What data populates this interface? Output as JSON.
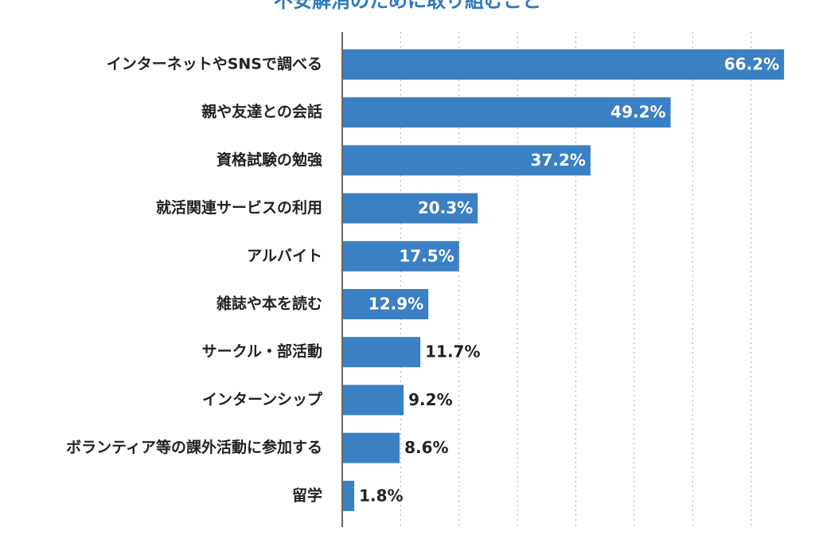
{
  "chart_data": {
    "type": "bar",
    "orientation": "horizontal",
    "title": "不安解消のために取り組むこと",
    "categories": [
      "インターネットやSNSで調べる",
      "親や友達との会話",
      "資格試験の勉強",
      "就活関連サービスの利用",
      "アルバイト",
      "雑誌や本を読む",
      "サークル・部活動",
      "インターンシップ",
      "ボランティア等の課外活動に参加する",
      "留学"
    ],
    "values": [
      66.2,
      49.2,
      37.2,
      20.3,
      17.5,
      12.9,
      11.7,
      9.2,
      8.6,
      1.8
    ],
    "value_labels": [
      "66.2%",
      "49.2%",
      "37.2%",
      "20.3%",
      "17.5%",
      "12.9%",
      "11.7%",
      "9.2%",
      "8.6%",
      "1.8%"
    ],
    "color": "#3a80c3",
    "xlim": [
      0,
      70
    ],
    "xticks": [
      8.75,
      17.5,
      26.25,
      35,
      43.75,
      52.5,
      61.25
    ],
    "grid": true
  }
}
